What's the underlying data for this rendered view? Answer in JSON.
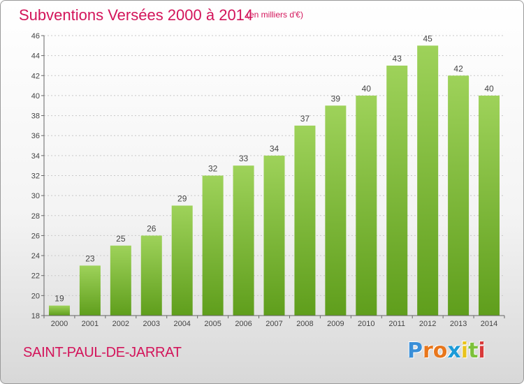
{
  "chart_data": {
    "type": "bar",
    "title": "Subventions Versées 2000 à 2014",
    "unit_note": "(en milliers d'€)",
    "categories": [
      "2000",
      "2001",
      "2002",
      "2003",
      "2004",
      "2005",
      "2006",
      "2007",
      "2008",
      "2009",
      "2010",
      "2011",
      "2012",
      "2013",
      "2014"
    ],
    "values": [
      19,
      23,
      25,
      26,
      29,
      32,
      33,
      34,
      37,
      39,
      40,
      43,
      45,
      42,
      40
    ],
    "ylim": [
      18,
      46
    ],
    "yticks": [
      18,
      20,
      22,
      24,
      26,
      28,
      30,
      32,
      34,
      36,
      38,
      40,
      42,
      44,
      46
    ],
    "grid": true,
    "bar_color": "#7cc13a"
  },
  "commune": "SAINT-PAUL-DE-JARRAT",
  "brand": {
    "letters": [
      "P",
      "r",
      "o",
      "x",
      "i",
      "t",
      "i"
    ],
    "colors": [
      "#3a8fd8",
      "#e8761c",
      "#e8761c",
      "#1c9bd8",
      "#e8c31c",
      "#7cc13a",
      "#d83a3a"
    ]
  }
}
